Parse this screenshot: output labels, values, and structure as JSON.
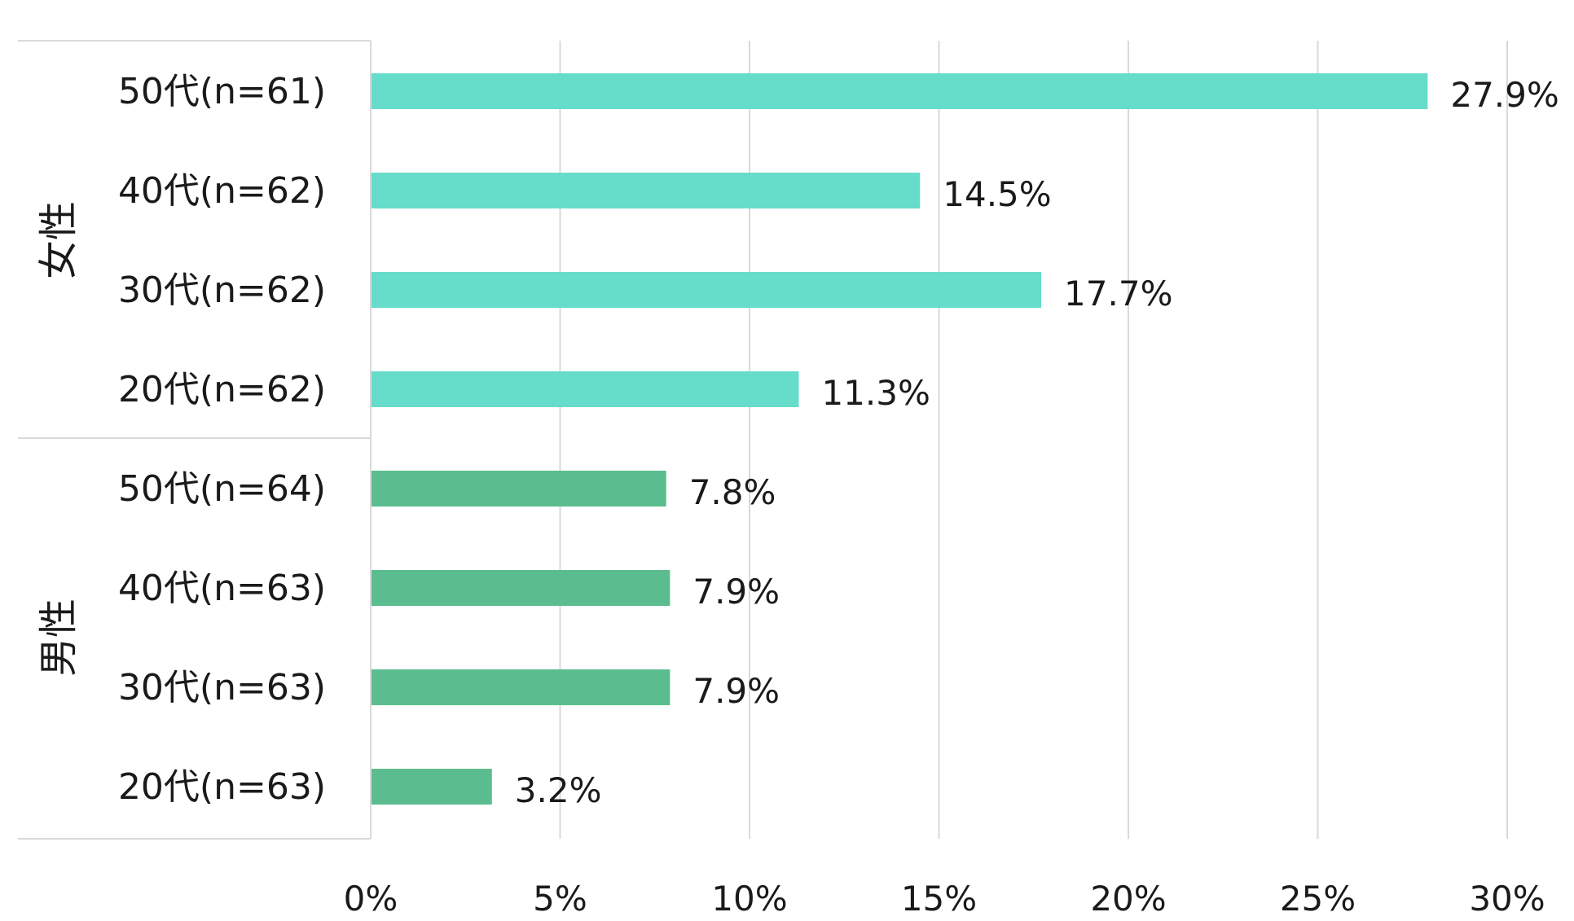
{
  "chart_data": {
    "type": "bar",
    "orientation": "horizontal",
    "title": "",
    "xlabel": "",
    "ylabel": "",
    "xlim": [
      0,
      30
    ],
    "x_ticks": [
      "0%",
      "5%",
      "10%",
      "15%",
      "20%",
      "25%",
      "30%"
    ],
    "x_tick_values": [
      0,
      5,
      10,
      15,
      20,
      25,
      30
    ],
    "grid": "vertical",
    "groups": [
      {
        "name": "女性",
        "color": "#66dccb",
        "categories": [
          "50代(n=61)",
          "40代(n=62)",
          "30代(n=62)",
          "20代(n=62)"
        ],
        "values": [
          27.9,
          14.5,
          17.7,
          11.3
        ],
        "labels": [
          "27.9%",
          "14.5%",
          "17.7%",
          "11.3%"
        ]
      },
      {
        "name": "男性",
        "color": "#5bbd8f",
        "categories": [
          "50代(n=64)",
          "40代(n=63)",
          "30代(n=63)",
          "20代(n=63)"
        ],
        "values": [
          7.8,
          7.9,
          7.9,
          3.2
        ],
        "labels": [
          "7.8%",
          "7.9%",
          "7.9%",
          "3.2%"
        ]
      }
    ]
  },
  "colors": {
    "grid": "#d9d9d9",
    "axis": "#d9d9d9",
    "text": "#1a1a1a"
  }
}
